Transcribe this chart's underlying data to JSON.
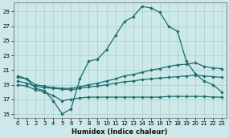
{
  "xlabel": "Humidex (Indice chaleur)",
  "bg_color": "#cce8e8",
  "grid_color": "#aacece",
  "line_color": "#1a6b6b",
  "xlim": [
    -0.5,
    23.5
  ],
  "ylim": [
    14.5,
    30.2
  ],
  "xticks": [
    0,
    1,
    2,
    3,
    4,
    5,
    6,
    7,
    8,
    9,
    10,
    11,
    12,
    13,
    14,
    15,
    16,
    17,
    18,
    19,
    20,
    21,
    22,
    23
  ],
  "yticks": [
    15,
    17,
    19,
    21,
    23,
    25,
    27,
    29
  ],
  "line1_x": [
    0,
    1,
    2,
    3,
    4,
    5,
    6,
    7,
    8,
    9,
    10,
    11,
    12,
    13,
    14,
    15,
    16,
    17,
    18,
    19,
    20,
    21,
    22,
    23
  ],
  "line1_y": [
    20.2,
    19.8,
    18.5,
    18.2,
    16.8,
    15.0,
    15.7,
    19.8,
    22.2,
    22.5,
    23.8,
    25.7,
    27.6,
    28.3,
    29.7,
    29.5,
    28.9,
    27.0,
    26.3,
    22.2,
    20.5,
    19.5,
    19.0,
    18.0
  ],
  "line2_x": [
    0,
    1,
    2,
    3,
    4,
    5,
    6,
    7,
    8,
    9,
    10,
    11,
    12,
    13,
    14,
    15,
    16,
    17,
    18,
    19,
    20,
    21,
    22,
    23
  ],
  "line2_y": [
    20.0,
    19.8,
    19.0,
    18.8,
    18.6,
    18.5,
    18.5,
    18.7,
    19.0,
    19.2,
    19.5,
    19.8,
    20.2,
    20.4,
    20.7,
    21.0,
    21.2,
    21.5,
    21.7,
    21.8,
    22.0,
    21.5,
    21.3,
    21.2
  ],
  "line3_x": [
    0,
    1,
    2,
    3,
    4,
    5,
    6,
    7,
    8,
    9,
    10,
    11,
    12,
    13,
    14,
    15,
    16,
    17,
    18,
    19,
    20,
    21,
    22,
    23
  ],
  "line3_y": [
    19.5,
    19.2,
    18.8,
    18.6,
    18.5,
    18.4,
    18.3,
    18.5,
    18.7,
    18.8,
    19.0,
    19.2,
    19.4,
    19.5,
    19.7,
    19.8,
    19.9,
    20.0,
    20.1,
    20.2,
    20.3,
    20.2,
    20.1,
    20.0
  ],
  "line4_x": [
    0,
    1,
    2,
    3,
    4,
    5,
    6,
    7,
    8,
    9,
    10,
    11,
    12,
    13,
    14,
    15,
    16,
    17,
    18,
    19,
    20,
    21,
    22,
    23
  ],
  "line4_y": [
    19.0,
    18.8,
    18.3,
    18.0,
    17.5,
    16.8,
    17.0,
    17.2,
    17.3,
    17.3,
    17.3,
    17.3,
    17.3,
    17.3,
    17.3,
    17.3,
    17.3,
    17.4,
    17.4,
    17.4,
    17.4,
    17.4,
    17.3,
    17.3
  ]
}
